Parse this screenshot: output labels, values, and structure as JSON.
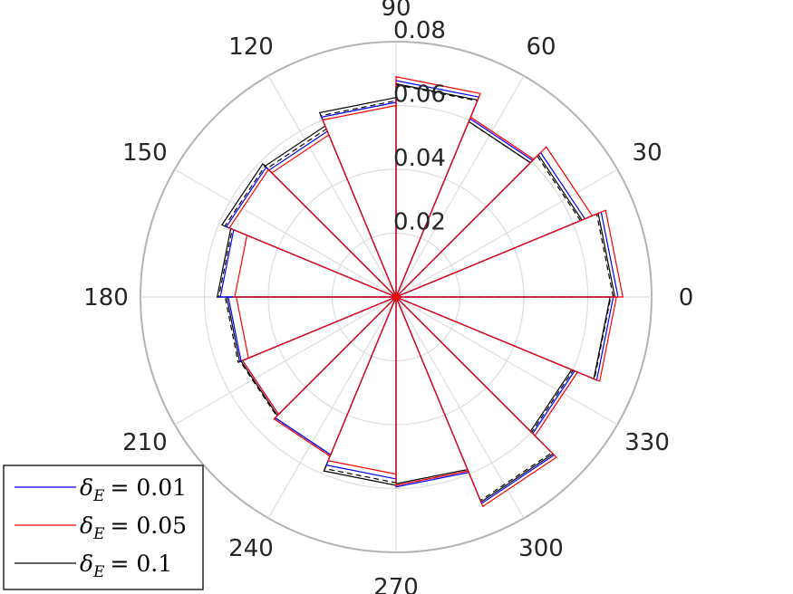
{
  "chart_data": {
    "type": "polar-rose",
    "title": "",
    "theta_unit": "degrees",
    "rlim": [
      0,
      0.08
    ],
    "r_ticks": [
      0.02,
      0.04,
      0.06,
      0.08
    ],
    "r_tick_labels": [
      "0.02",
      "0.04",
      "0.06",
      "0.08"
    ],
    "theta_ticks": [
      0,
      30,
      60,
      90,
      120,
      150,
      180,
      210,
      240,
      270,
      300,
      330
    ],
    "theta_tick_labels": [
      "0",
      "30",
      "60",
      "90",
      "120",
      "150",
      "180",
      "210",
      "240",
      "270",
      "300",
      "330"
    ],
    "grid": true,
    "legend_position": "bottom-left",
    "bin_edges_deg": [
      0,
      22.5,
      45,
      67.5,
      90,
      112.5,
      135,
      157.5,
      180,
      202.5,
      225,
      247.5,
      270,
      292.5,
      315,
      337.5,
      360
    ],
    "series": [
      {
        "name": "δE = 0.01",
        "legend_label_symbol": "δ",
        "legend_label_sub": "E",
        "legend_label_value": "= 0.01",
        "color": "#0000ff",
        "dash": "solid",
        "values": [
          0.0695,
          0.064,
          0.0605,
          0.0678,
          0.061,
          0.0562,
          0.0575,
          0.055,
          0.0525,
          0.052,
          0.0535,
          0.057,
          0.0595,
          0.07,
          0.0605,
          0.068
        ]
      },
      {
        "name": "δE = 0.05",
        "legend_label_symbol": "δ",
        "legend_label_sub": "E",
        "legend_label_value": "= 0.05",
        "color": "#ff0000",
        "dash": "solid",
        "values": [
          0.071,
          0.0665,
          0.061,
          0.069,
          0.06,
          0.055,
          0.0565,
          0.0505,
          0.05,
          0.052,
          0.054,
          0.0555,
          0.059,
          0.071,
          0.0615,
          0.069
        ]
      },
      {
        "name": "δE = 0.1",
        "legend_label_symbol": "δ",
        "legend_label_sub": "E",
        "legend_label_value": "= 0.1",
        "color": "#000000",
        "dash": "solid",
        "values": [
          0.0685,
          0.063,
          0.0595,
          0.0668,
          0.0625,
          0.058,
          0.059,
          0.056,
          0.053,
          0.0525,
          0.0535,
          0.059,
          0.0585,
          0.0695,
          0.0595,
          0.067
        ]
      },
      {
        "name": "",
        "color": "#000000",
        "dash": "dashed",
        "values": [
          0.068,
          0.0625,
          0.0595,
          0.0665,
          0.0615,
          0.057,
          0.058,
          0.0555,
          0.0535,
          0.0528,
          0.054,
          0.0582,
          0.059,
          0.069,
          0.06,
          0.0672
        ]
      }
    ]
  }
}
